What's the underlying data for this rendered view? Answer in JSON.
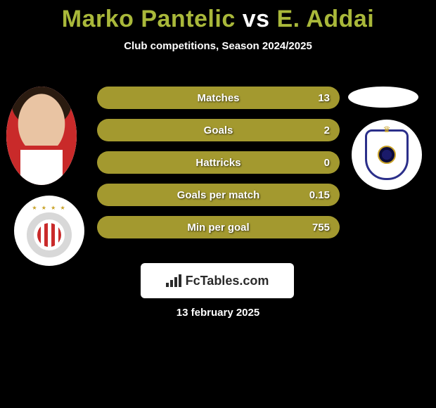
{
  "title": {
    "player1": "Marko Pantelic",
    "vs": "vs",
    "player2": "E. Addai",
    "player1_color": "#a9b83a",
    "vs_color": "#ffffff",
    "player2_color": "#a9b83a"
  },
  "subtitle": "Club competitions, Season 2024/2025",
  "bar_color": "#a3992f",
  "bars": [
    {
      "label": "Matches",
      "value": "13"
    },
    {
      "label": "Goals",
      "value": "2"
    },
    {
      "label": "Hattricks",
      "value": "0"
    },
    {
      "label": "Goals per match",
      "value": "0.15"
    },
    {
      "label": "Min per goal",
      "value": "755"
    }
  ],
  "footer_brand": "FcTables.com",
  "date": "13 february 2025",
  "icons": {
    "player_left": "player-photo",
    "player_right": "player-placeholder-oval",
    "club_left": "olympiacos-crest",
    "club_right": "qarabag-crest",
    "chart": "bar-chart-icon"
  }
}
